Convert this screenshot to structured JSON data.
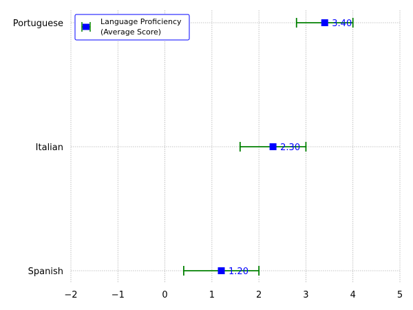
{
  "chart_data": {
    "type": "scatter",
    "orientation": "horizontal",
    "categories": [
      "Spanish",
      "Italian",
      "Portuguese"
    ],
    "values": [
      1.2,
      2.3,
      3.4
    ],
    "error_low": [
      0.4,
      1.6,
      2.8
    ],
    "error_high": [
      2.0,
      3.0,
      4.0
    ],
    "value_labels": [
      "1.20",
      "2.30",
      "3.40"
    ],
    "series": [
      {
        "name": "Language Proficiency\n(Average Score)",
        "legend_lines": [
          "Language Proficiency",
          "(Average Score)"
        ],
        "values": [
          1.2,
          2.3,
          3.4
        ]
      }
    ],
    "xlim": [
      -2,
      5
    ],
    "xticks": [
      -2,
      -1,
      0,
      1,
      2,
      3,
      4,
      5
    ],
    "xtick_labels": [
      "−2",
      "−1",
      "0",
      "1",
      "2",
      "3",
      "4",
      "5"
    ],
    "grid": true,
    "legend_position": "top-left",
    "title": "",
    "xlabel": "",
    "ylabel": "",
    "colors": {
      "marker": "#0000ff",
      "error_bar": "#008000",
      "label": "#0000ff",
      "grid": "#b0b0b0",
      "legend_border": "#0000ff"
    }
  }
}
